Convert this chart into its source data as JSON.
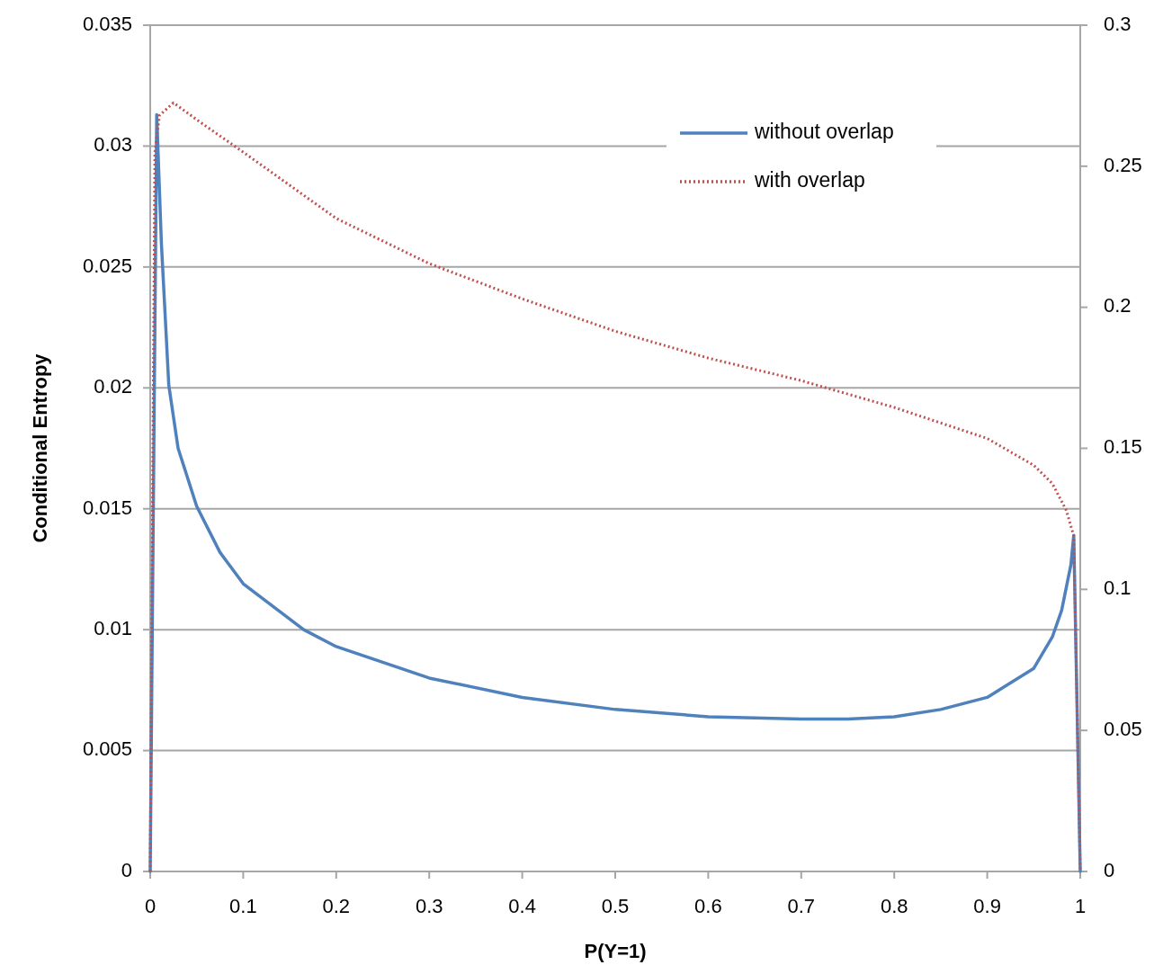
{
  "chart_data": {
    "type": "line",
    "xlabel": "P(Y=1)",
    "ylabel": "Conditional Entropy",
    "xlim": [
      0,
      1
    ],
    "xticks": [
      0,
      0.1,
      0.2,
      0.3,
      0.4,
      0.5,
      0.6,
      0.7,
      0.8,
      0.9,
      1
    ],
    "ylim": [
      0,
      0.035
    ],
    "yticks": [
      0,
      0.005,
      0.01,
      0.015,
      0.02,
      0.025,
      0.03,
      0.035
    ],
    "y2lim": [
      0,
      0.3
    ],
    "y2ticks": [
      0,
      0.05,
      0.1,
      0.15,
      0.2,
      0.25,
      0.3
    ],
    "grid": "y",
    "legend": "top right",
    "series": [
      {
        "name": "without overlap",
        "color": "#4f81bd",
        "line_style": "solid",
        "x": [
          0,
          0.007,
          0.012,
          0.02,
          0.03,
          0.05,
          0.075,
          0.1,
          0.165,
          0.2,
          0.3,
          0.4,
          0.5,
          0.6,
          0.7,
          0.75,
          0.8,
          0.85,
          0.9,
          0.95,
          0.97,
          0.98,
          0.99,
          0.993,
          1
        ],
        "values": [
          0,
          0.0313,
          0.026,
          0.0201,
          0.0175,
          0.0151,
          0.0132,
          0.0119,
          0.01,
          0.0093,
          0.008,
          0.0072,
          0.0067,
          0.0064,
          0.0063,
          0.0063,
          0.0064,
          0.0067,
          0.0072,
          0.0084,
          0.0097,
          0.0108,
          0.0127,
          0.0139,
          0
        ]
      },
      {
        "name": "with overlap",
        "color": "#c0504d",
        "line_style": "dotted",
        "axis": "y2",
        "x": [
          0,
          0.005,
          0.01,
          0.025,
          0.05,
          0.1,
          0.2,
          0.3,
          0.4,
          0.5,
          0.6,
          0.7,
          0.8,
          0.9,
          0.95,
          0.97,
          0.985,
          0.993,
          1
        ],
        "values": [
          0,
          0.255,
          0.268,
          0.2725,
          0.2665,
          0.255,
          0.2315,
          0.2155,
          0.203,
          0.1915,
          0.182,
          0.174,
          0.1645,
          0.1535,
          0.144,
          0.1375,
          0.128,
          0.119,
          0
        ]
      }
    ]
  }
}
